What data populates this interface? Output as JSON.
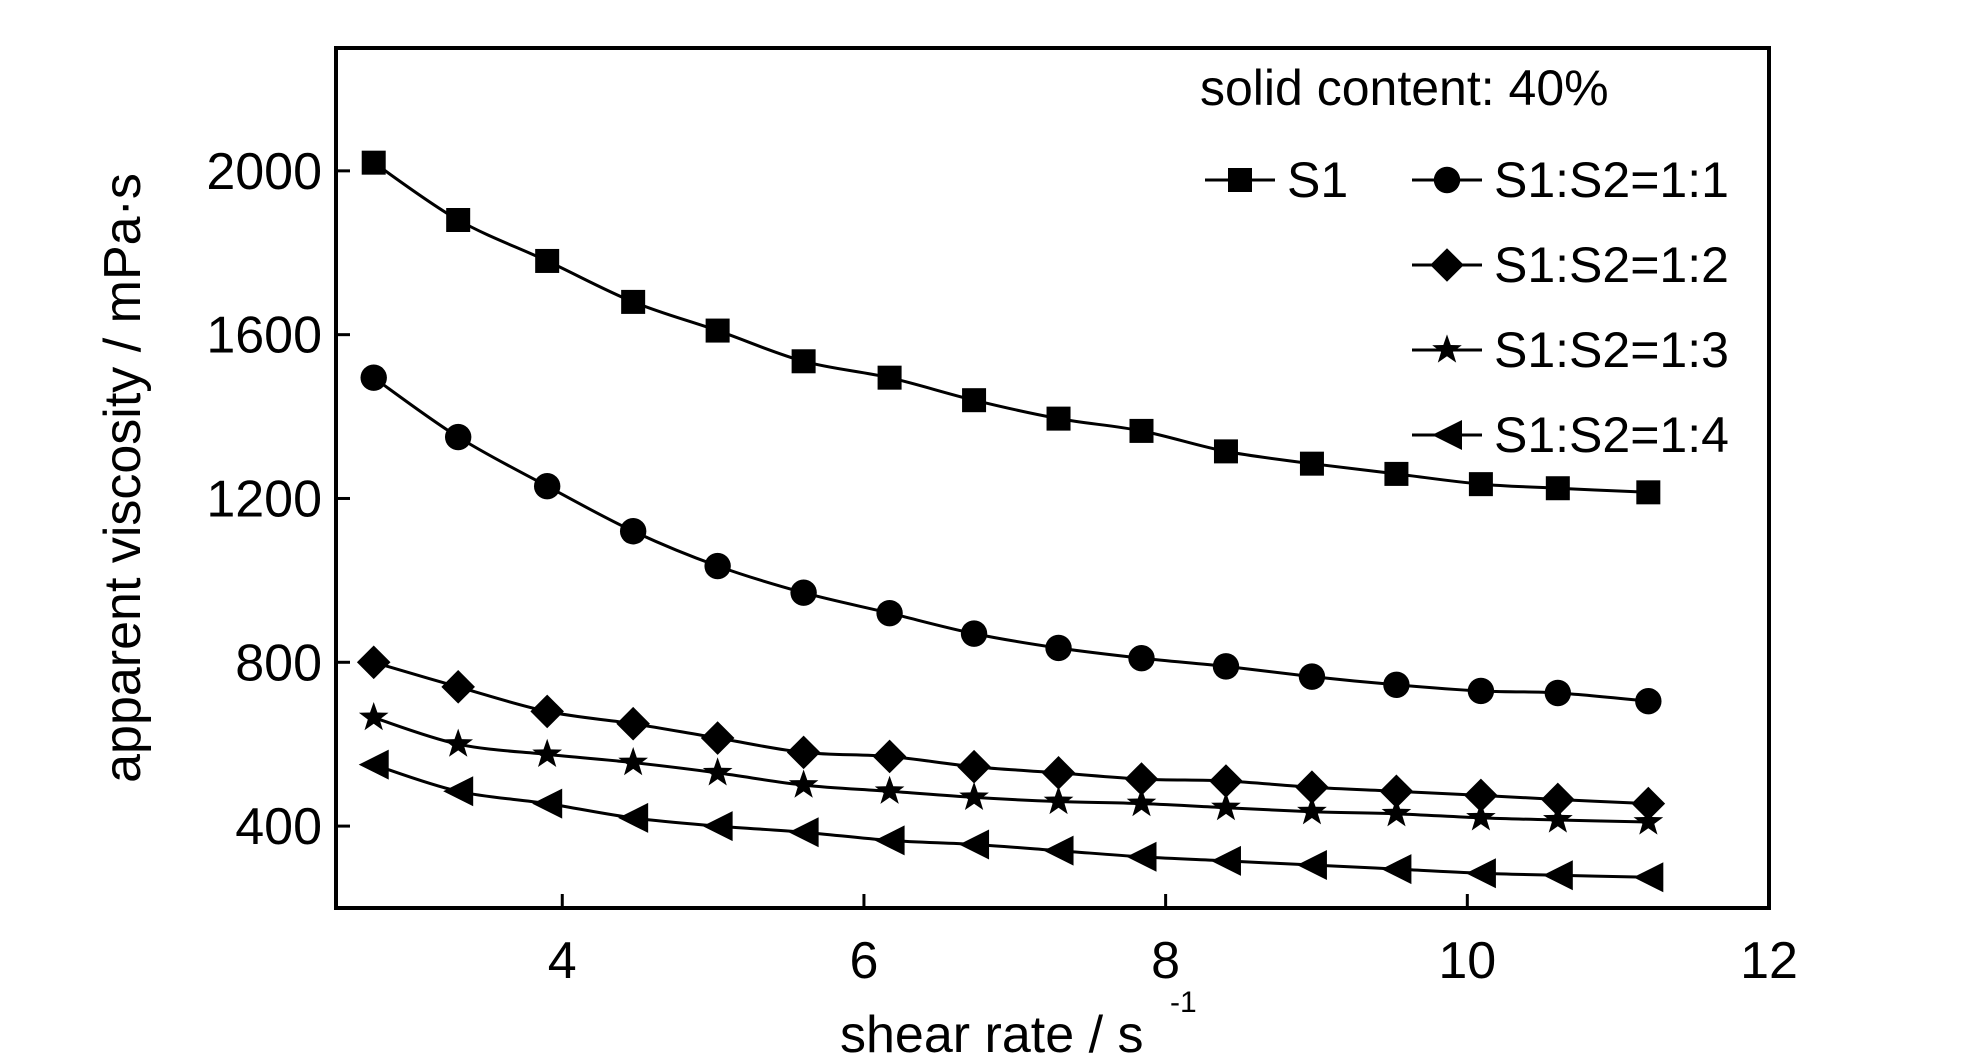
{
  "chart_data": {
    "type": "line",
    "annotation": "solid content: 40%",
    "xlabel": "shear rate / s",
    "xlabel_superscript": "-1",
    "ylabel": "apparent viscosity / mPa·s",
    "xlim": [
      2.5,
      12
    ],
    "ylim": [
      200,
      2300
    ],
    "xticks": [
      4,
      6,
      8,
      10,
      12
    ],
    "yticks": [
      400,
      800,
      1200,
      1600,
      2000
    ],
    "x": [
      2.75,
      3.31,
      3.9,
      4.47,
      5.03,
      5.6,
      6.17,
      6.73,
      7.29,
      7.84,
      8.4,
      8.97,
      9.53,
      10.09,
      10.6,
      11.2
    ],
    "series": [
      {
        "name": "S1",
        "marker": "square",
        "values": [
          2020,
          1880,
          1780,
          1680,
          1610,
          1535,
          1495,
          1440,
          1395,
          1365,
          1315,
          1285,
          1260,
          1235,
          1225,
          1215
        ]
      },
      {
        "name": "S1:S2=1:1",
        "marker": "circle",
        "values": [
          1495,
          1350,
          1230,
          1120,
          1035,
          970,
          920,
          870,
          835,
          810,
          790,
          765,
          745,
          730,
          725,
          705
        ]
      },
      {
        "name": "S1:S2=1:2",
        "marker": "diamond",
        "values": [
          800,
          740,
          680,
          650,
          615,
          580,
          570,
          545,
          530,
          515,
          510,
          495,
          485,
          475,
          465,
          455
        ]
      },
      {
        "name": "S1:S2=1:3",
        "marker": "star",
        "values": [
          665,
          600,
          575,
          555,
          530,
          500,
          485,
          470,
          460,
          455,
          445,
          435,
          430,
          420,
          415,
          410
        ]
      },
      {
        "name": "S1:S2=1:4",
        "marker": "left-triangle",
        "values": [
          550,
          485,
          455,
          420,
          400,
          385,
          365,
          355,
          340,
          325,
          315,
          305,
          295,
          285,
          280,
          275
        ]
      }
    ],
    "legend_position": "top-right",
    "grid": false
  }
}
